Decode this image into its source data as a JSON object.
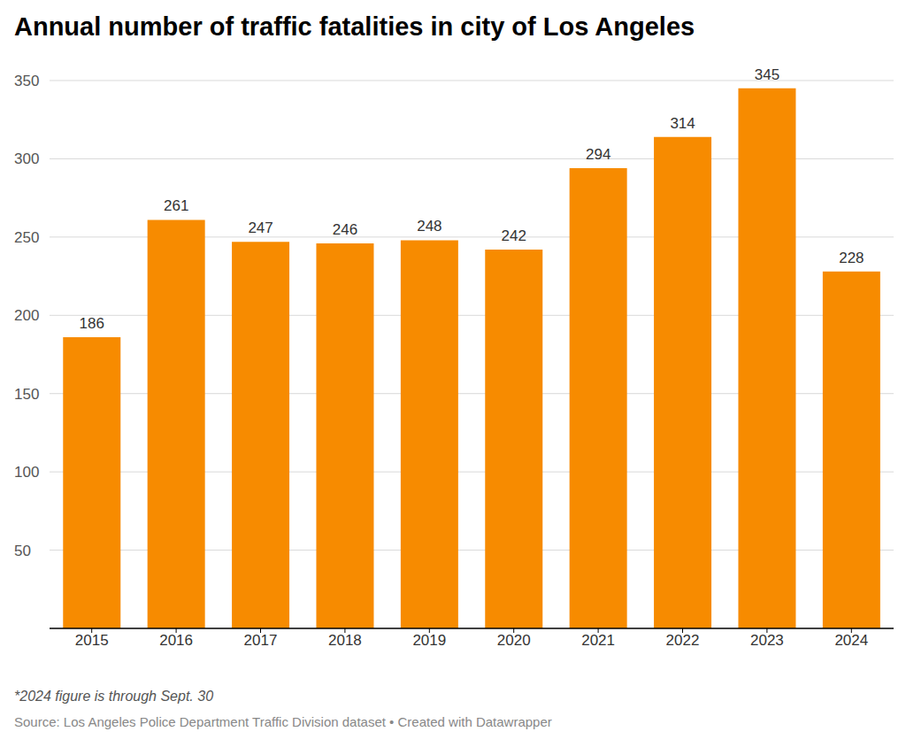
{
  "chart_data": {
    "type": "bar",
    "title": "Annual number of traffic fatalities in city of Los Angeles",
    "categories": [
      "2015",
      "2016",
      "2017",
      "2018",
      "2019",
      "2020",
      "2021",
      "2022",
      "2023",
      "2024"
    ],
    "values": [
      186,
      261,
      247,
      246,
      248,
      242,
      294,
      314,
      345,
      228
    ],
    "color": "#f78b00",
    "ylim": [
      0,
      350
    ],
    "yticks": [
      50,
      100,
      150,
      200,
      250,
      300,
      350
    ],
    "grid": true,
    "data_labels": true,
    "footnote": "*2024 figure is through Sept. 30",
    "source": "Source: Los Angeles Police Department Traffic Division dataset • Created with Datawrapper"
  }
}
